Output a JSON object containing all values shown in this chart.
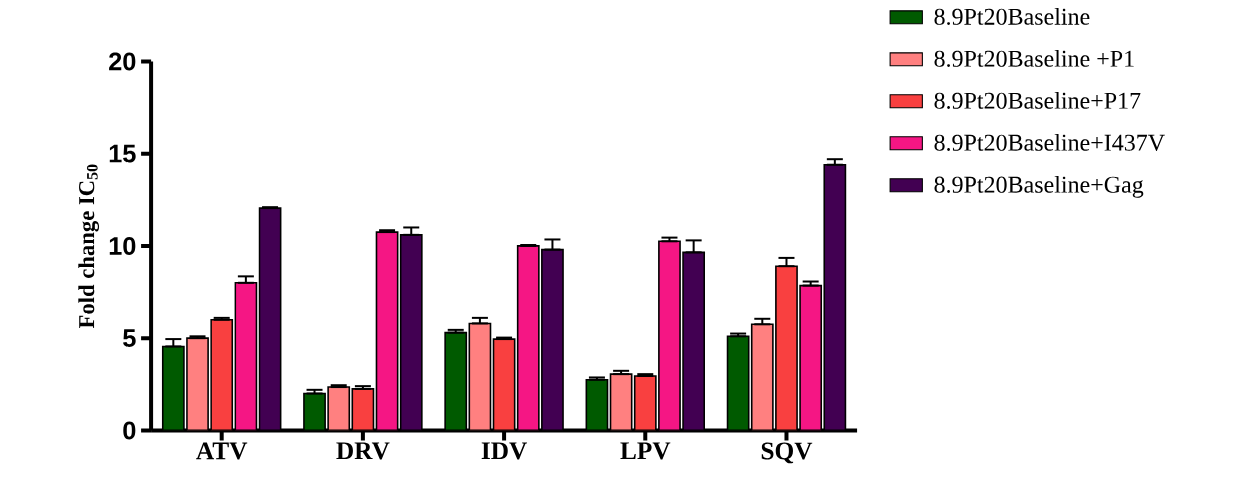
{
  "chart_data": {
    "type": "bar",
    "ylabel": "Fold change IC$_{50}$",
    "categories": [
      "ATV",
      "DRV",
      "IDV",
      "LPV",
      "SQV"
    ],
    "series": [
      {
        "name": "8.9Pt20Baseline",
        "color": "#005a00",
        "values": [
          4.55,
          2.0,
          5.3,
          2.75,
          5.1
        ],
        "errors": [
          [
            4.55,
            4.95
          ],
          [
            2.0,
            2.2
          ],
          [
            5.3,
            5.45
          ],
          [
            2.75,
            2.87
          ],
          [
            5.1,
            5.25
          ]
        ]
      },
      {
        "name": "8.9Pt20Baseline +P1",
        "color": "#ff8080",
        "values": [
          5.0,
          2.35,
          5.8,
          3.05,
          5.75
        ],
        "errors": [
          [
            5.0,
            5.1
          ],
          [
            2.35,
            2.45
          ],
          [
            5.8,
            6.1
          ],
          [
            3.05,
            3.23
          ],
          [
            5.75,
            6.05
          ]
        ]
      },
      {
        "name": "8.9Pt20Baseline+P17",
        "color": "#f94040",
        "values": [
          6.0,
          2.25,
          4.95,
          2.95,
          8.9
        ],
        "errors": [
          [
            6.0,
            6.1
          ],
          [
            2.25,
            2.4
          ],
          [
            4.95,
            5.03
          ],
          [
            2.95,
            3.05
          ],
          [
            8.9,
            9.35
          ]
        ]
      },
      {
        "name": "8.9Pt20Baseline+I437V",
        "color": "#f51684",
        "values": [
          8.0,
          10.75,
          10.0,
          10.25,
          7.85
        ],
        "errors": [
          [
            8.0,
            8.35
          ],
          [
            10.75,
            10.85
          ],
          [
            10.0,
            10.05
          ],
          [
            10.25,
            10.45
          ],
          [
            7.85,
            8.07
          ]
        ]
      },
      {
        "name": "8.9Pt20Baseline+Gag",
        "color": "#420052",
        "values": [
          12.05,
          10.6,
          9.8,
          9.65,
          14.4
        ],
        "errors": [
          [
            12.05,
            12.1
          ],
          [
            10.6,
            11.0
          ],
          [
            9.8,
            10.35
          ],
          [
            9.65,
            10.3
          ],
          [
            14.4,
            14.7
          ]
        ]
      }
    ],
    "ylim": [
      0,
      20
    ],
    "yticks": [
      0,
      5,
      10,
      15,
      20
    ],
    "legend": "right"
  }
}
